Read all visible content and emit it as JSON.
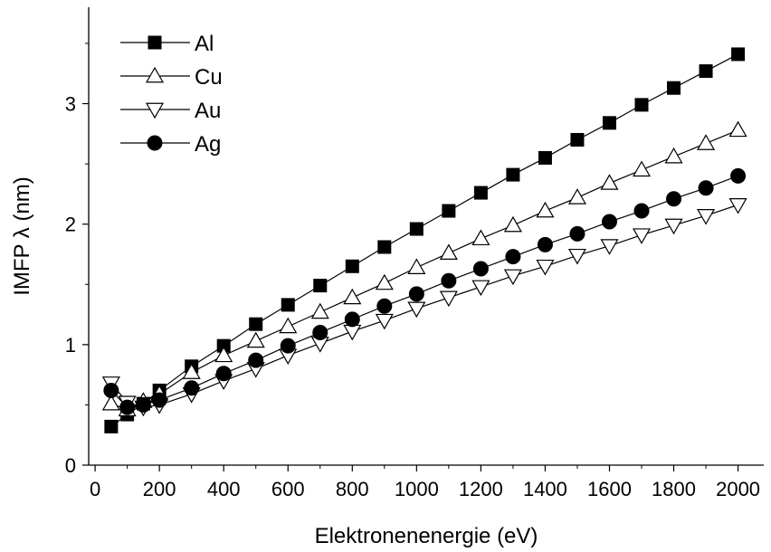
{
  "chart_data": {
    "type": "line",
    "title": "",
    "xlabel": "Elektronenenergie (eV)",
    "ylabel": "IMFP λ (nm)",
    "xlim": [
      -20,
      2080
    ],
    "ylim": [
      0,
      3.8
    ],
    "xticks": [
      0,
      200,
      400,
      600,
      800,
      1000,
      1200,
      1400,
      1600,
      1800,
      2000
    ],
    "xtick_labels": [
      "0",
      "200",
      "400",
      "600",
      "800",
      "1000",
      "1200",
      "1400",
      "1600",
      "1800",
      "2000"
    ],
    "yticks": [
      0,
      1,
      2,
      3
    ],
    "ytick_labels": [
      "0",
      "1",
      "2",
      "3"
    ],
    "grid": false,
    "legend_position": "top-left",
    "x": [
      50,
      100,
      150,
      200,
      300,
      400,
      500,
      600,
      700,
      800,
      900,
      1000,
      1100,
      1200,
      1300,
      1400,
      1500,
      1600,
      1700,
      1800,
      1900,
      2000
    ],
    "series": [
      {
        "name": "Al",
        "marker": "square-filled",
        "values": [
          0.32,
          0.42,
          0.51,
          0.62,
          0.82,
          0.99,
          1.17,
          1.33,
          1.49,
          1.65,
          1.81,
          1.96,
          2.11,
          2.26,
          2.41,
          2.55,
          2.7,
          2.84,
          2.99,
          3.13,
          3.27,
          3.41
        ]
      },
      {
        "name": "Cu",
        "marker": "triangle-up-open",
        "values": [
          0.51,
          0.46,
          0.53,
          0.59,
          0.77,
          0.91,
          1.03,
          1.15,
          1.27,
          1.39,
          1.51,
          1.64,
          1.76,
          1.88,
          1.99,
          2.11,
          2.22,
          2.34,
          2.45,
          2.56,
          2.67,
          2.78
        ]
      },
      {
        "name": "Au",
        "marker": "triangle-down-open",
        "values": [
          0.68,
          0.52,
          0.48,
          0.5,
          0.59,
          0.7,
          0.8,
          0.91,
          1.01,
          1.11,
          1.2,
          1.3,
          1.39,
          1.48,
          1.57,
          1.65,
          1.74,
          1.82,
          1.91,
          1.99,
          2.07,
          2.16
        ]
      },
      {
        "name": "Ag",
        "marker": "circle-filled",
        "values": [
          0.62,
          0.48,
          0.5,
          0.54,
          0.64,
          0.76,
          0.87,
          0.99,
          1.1,
          1.21,
          1.32,
          1.42,
          1.53,
          1.63,
          1.73,
          1.83,
          1.92,
          2.02,
          2.11,
          2.21,
          2.3,
          2.4
        ]
      }
    ]
  }
}
